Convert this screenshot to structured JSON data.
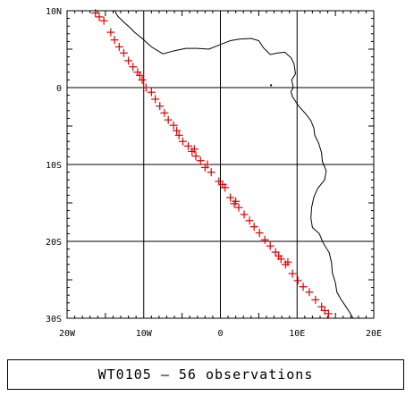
{
  "map": {
    "projection": "equirectangular",
    "lon_range": [
      -20,
      20
    ],
    "lat_range": [
      -30,
      10
    ],
    "grid": true,
    "lon_tick_labels": [
      "20W",
      "10W",
      "0",
      "10E",
      "20E"
    ],
    "lat_tick_labels": [
      "10N",
      "0",
      "10S",
      "20S",
      "30S"
    ],
    "lon_ticks": [
      -20,
      -10,
      0,
      10,
      20
    ],
    "lat_ticks": [
      10,
      0,
      -10,
      -20,
      -30
    ],
    "marker_symbol": "+",
    "marker_color": "#e00000",
    "coastline_color": "#000000"
  },
  "observations": [
    [
      -16.3,
      9.7
    ],
    [
      -15.2,
      8.7
    ],
    [
      -14.3,
      7.2
    ],
    [
      -13.8,
      6.2
    ],
    [
      -13.2,
      5.3
    ],
    [
      -12.6,
      4.5
    ],
    [
      -12.0,
      3.5
    ],
    [
      -11.4,
      2.7
    ],
    [
      -10.8,
      2.0
    ],
    [
      -10.2,
      1.0
    ],
    [
      -9.7,
      0.0
    ],
    [
      -9.0,
      -0.6
    ],
    [
      -8.5,
      -1.5
    ],
    [
      -7.9,
      -2.4
    ],
    [
      -7.3,
      -3.3
    ],
    [
      -6.8,
      -4.2
    ],
    [
      -6.1,
      -4.9
    ],
    [
      -5.4,
      -6.2
    ],
    [
      -4.9,
      -7.0
    ],
    [
      -4.2,
      -7.6
    ],
    [
      -3.7,
      -8.3
    ],
    [
      -3.2,
      -8.9
    ],
    [
      -2.6,
      -9.5
    ],
    [
      -2.0,
      -10.4
    ],
    [
      -1.2,
      -11.0
    ],
    [
      -0.2,
      -12.2
    ],
    [
      0.6,
      -13.0
    ],
    [
      1.3,
      -14.3
    ],
    [
      1.8,
      -15.1
    ],
    [
      2.4,
      -15.6
    ],
    [
      3.1,
      -16.5
    ],
    [
      3.8,
      -17.3
    ],
    [
      4.4,
      -18.1
    ],
    [
      5.1,
      -18.9
    ],
    [
      5.8,
      -19.8
    ],
    [
      6.5,
      -20.6
    ],
    [
      7.2,
      -21.4
    ],
    [
      7.9,
      -22.3
    ],
    [
      8.5,
      -23.0
    ],
    [
      9.4,
      -24.2
    ],
    [
      10.1,
      -25.1
    ],
    [
      10.8,
      -25.9
    ],
    [
      11.6,
      -26.6
    ],
    [
      12.4,
      -27.6
    ],
    [
      13.2,
      -28.5
    ],
    [
      14.1,
      -29.4
    ],
    [
      -15.8,
      9.2
    ],
    [
      -5.7,
      -5.6
    ],
    [
      -3.4,
      -8.0
    ],
    [
      -1.7,
      -10.0
    ],
    [
      0.3,
      -12.6
    ],
    [
      2.0,
      -14.8
    ],
    [
      7.6,
      -21.9
    ],
    [
      8.8,
      -22.7
    ],
    [
      13.6,
      -29.0
    ],
    [
      -10.5,
      1.6
    ]
  ],
  "coastline": [
    [
      -13.8,
      10.0
    ],
    [
      -13.4,
      9.3
    ],
    [
      -12.7,
      8.6
    ],
    [
      -11.9,
      7.9
    ],
    [
      -11.2,
      7.2
    ],
    [
      -10.2,
      6.4
    ],
    [
      -9.0,
      5.3
    ],
    [
      -7.5,
      4.4
    ],
    [
      -6.0,
      4.8
    ],
    [
      -4.5,
      5.1
    ],
    [
      -3.0,
      5.1
    ],
    [
      -1.5,
      5.0
    ],
    [
      0.0,
      5.6
    ],
    [
      1.3,
      6.1
    ],
    [
      2.5,
      6.3
    ],
    [
      4.0,
      6.4
    ],
    [
      5.0,
      6.1
    ],
    [
      5.6,
      5.2
    ],
    [
      6.5,
      4.3
    ],
    [
      7.5,
      4.5
    ],
    [
      8.4,
      4.6
    ],
    [
      9.2,
      3.9
    ],
    [
      9.6,
      3.1
    ],
    [
      9.8,
      1.8
    ],
    [
      9.3,
      1.0
    ],
    [
      9.5,
      0.0
    ],
    [
      9.2,
      -0.5
    ],
    [
      9.4,
      -1.2
    ],
    [
      10.2,
      -2.4
    ],
    [
      11.1,
      -3.4
    ],
    [
      11.8,
      -4.3
    ],
    [
      12.2,
      -5.3
    ],
    [
      12.3,
      -6.2
    ],
    [
      12.8,
      -7.2
    ],
    [
      13.2,
      -8.5
    ],
    [
      13.3,
      -9.6
    ],
    [
      13.8,
      -10.8
    ],
    [
      13.6,
      -12.0
    ],
    [
      12.7,
      -13.1
    ],
    [
      12.2,
      -14.2
    ],
    [
      11.9,
      -15.6
    ],
    [
      11.8,
      -17.0
    ],
    [
      12.0,
      -18.2
    ],
    [
      12.9,
      -19.0
    ],
    [
      13.4,
      -20.2
    ],
    [
      14.2,
      -21.5
    ],
    [
      14.5,
      -22.8
    ],
    [
      14.6,
      -24.1
    ],
    [
      15.0,
      -25.4
    ],
    [
      15.2,
      -26.6
    ],
    [
      15.7,
      -27.5
    ],
    [
      16.3,
      -28.4
    ],
    [
      16.9,
      -29.3
    ],
    [
      17.3,
      -30.0
    ]
  ],
  "caption": {
    "text": "WT0105 — 56 observations"
  }
}
